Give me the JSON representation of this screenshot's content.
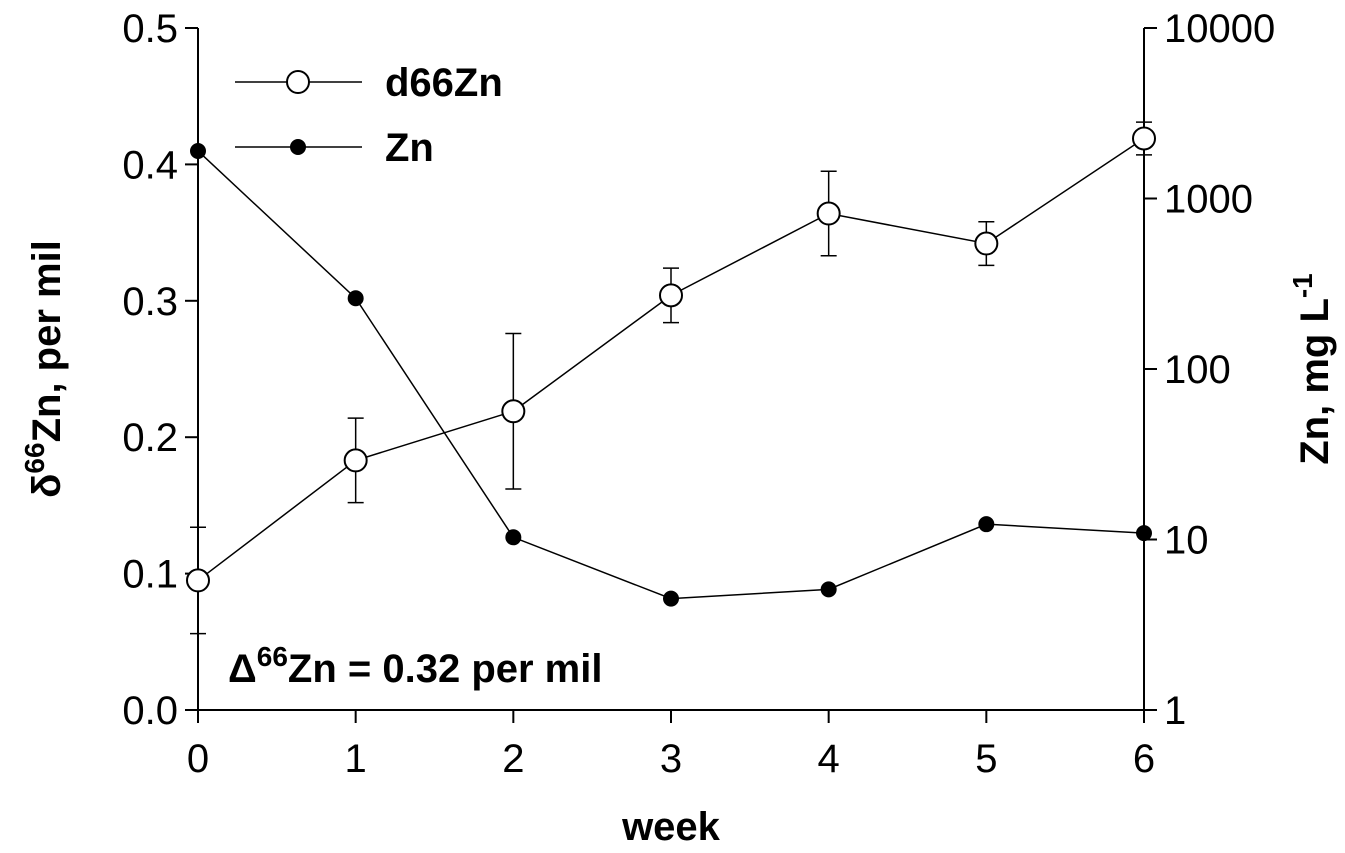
{
  "chart_data": {
    "type": "line",
    "x_label": "week",
    "y_label": [
      "δ",
      "66",
      "Zn, per mil"
    ],
    "y2_label": [
      "Zn, mg L",
      "-1"
    ],
    "annotation": [
      "Δ",
      "66",
      "Zn = 0.32 per mil"
    ],
    "x": [
      0,
      1,
      2,
      3,
      4,
      5,
      6
    ],
    "xlim": [
      0,
      6
    ],
    "xticks": [
      0,
      1,
      2,
      3,
      4,
      5,
      6
    ],
    "ylim": [
      0,
      0.5
    ],
    "yticks": [
      {
        "value": 0,
        "label": "0.0"
      },
      0.1,
      0.2,
      0.3,
      0.4,
      0.5
    ],
    "y2lim": [
      1,
      10000
    ],
    "y2ticks": [
      1,
      10,
      100,
      1000,
      10000
    ],
    "y2_scale": "log",
    "grid": false,
    "legend": "upper left",
    "series": [
      {
        "name": "d66Zn",
        "color": "#000000",
        "marker": "open-circle",
        "values": [
          0.095,
          0.183,
          0.219,
          0.304,
          0.364,
          0.342,
          0.419
        ],
        "errors": [
          0.039,
          0.031,
          0.057,
          0.02,
          0.031,
          0.016,
          0.012
        ]
      },
      {
        "name": "Zn",
        "color": "#000000",
        "marker": "filled-circle",
        "axis": "y2",
        "values": [
          1900,
          260,
          10.3,
          4.5,
          5.1,
          12.3,
          10.9
        ]
      }
    ]
  }
}
